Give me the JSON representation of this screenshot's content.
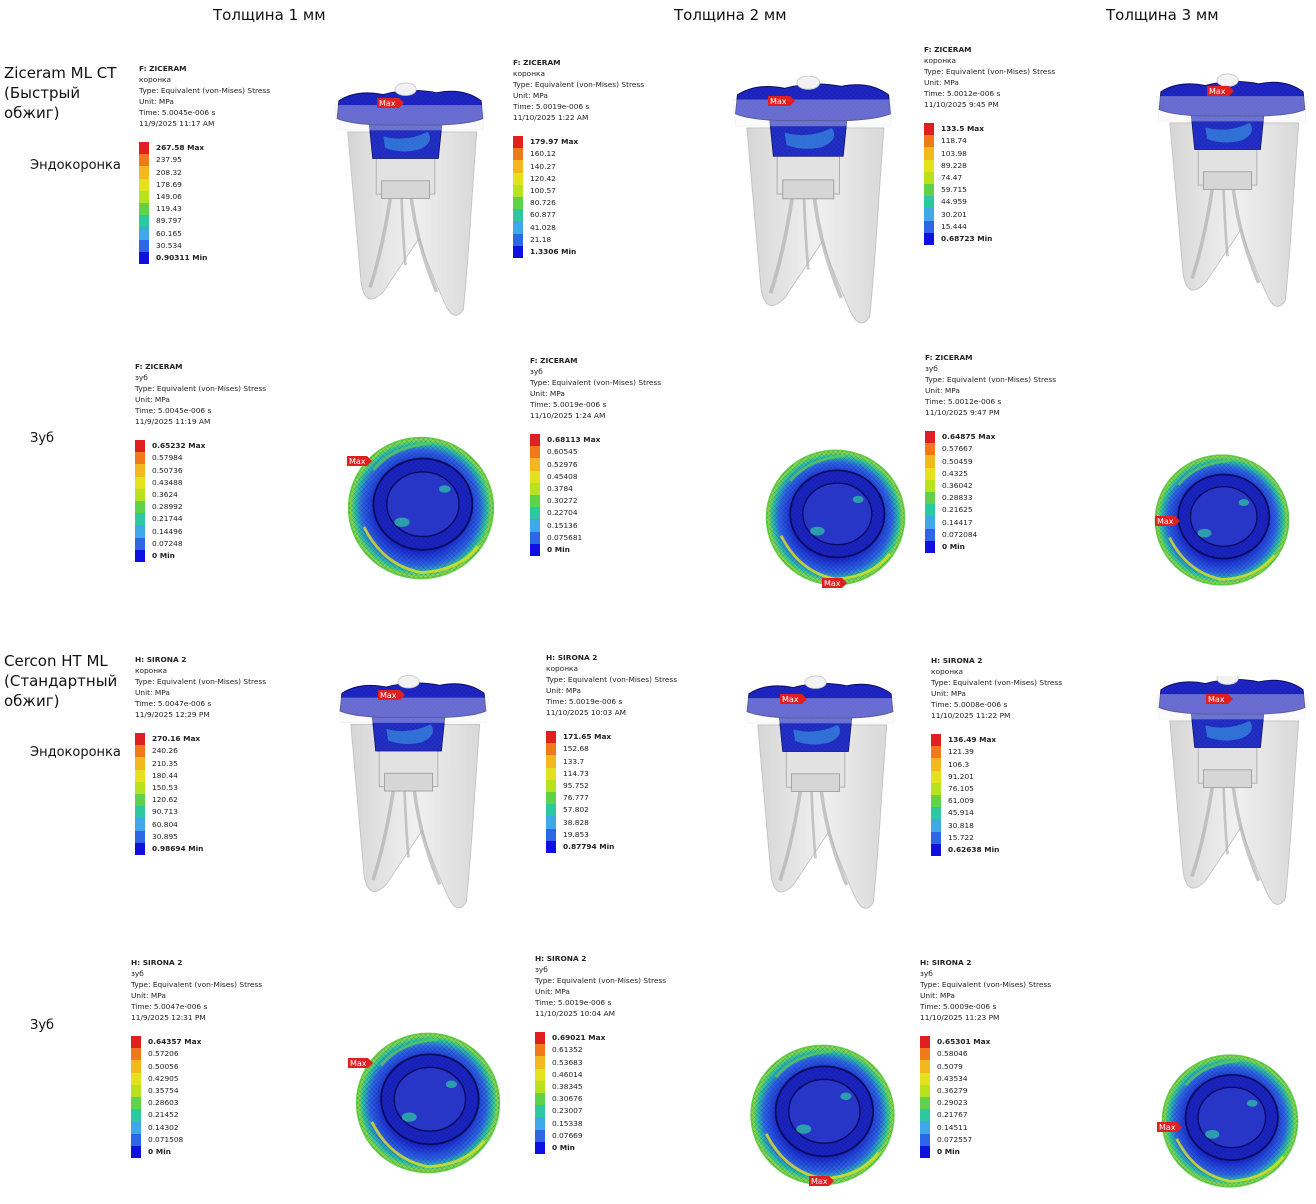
{
  "columns": [
    "Толщина 1 мм",
    "Толщина 2 мм",
    "Толщина 3 мм"
  ],
  "materials": [
    {
      "name": "Ziceram ML CT (Быстрый обжиг)"
    },
    {
      "name": "Cercon HT ML (Стандартный обжиг)"
    }
  ],
  "row_labels": {
    "crown": "Эндокоронка",
    "tooth": "Зуб"
  },
  "max_tag": "Max",
  "colors": [
    "#e02020",
    "#f07a1a",
    "#f2b81e",
    "#e4e21c",
    "#b8e21e",
    "#5fd24a",
    "#2cc9a0",
    "#3ea8e8",
    "#2d66e6",
    "#1010e0"
  ],
  "legends": [
    {
      "header": [
        "F: ZICERAM",
        "коронка",
        "Type: Equivalent (von-Mises) Stress",
        "Unit: MPa",
        "Time: 5.0045e-006 s",
        "11/9/2025 11:17 AM"
      ],
      "values": [
        "267.58 Max",
        "237.95",
        "208.32",
        "178.69",
        "149.06",
        "119.43",
        "89.797",
        "60.165",
        "30.534",
        "0.90311 Min"
      ]
    },
    {
      "header": [
        "F: ZICERAM",
        "коронка",
        "Type: Equivalent (von-Mises) Stress",
        "Unit: MPa",
        "Time: 5.0019e-006 s",
        "11/10/2025 1:22 AM"
      ],
      "values": [
        "179.97 Max",
        "160.12",
        "140.27",
        "120.42",
        "100.57",
        "80.726",
        "60.877",
        "41.028",
        "21.18",
        "1.3306 Min"
      ]
    },
    {
      "header": [
        "F: ZICERAM",
        "коронка",
        "Type: Equivalent (von-Mises) Stress",
        "Unit: MPa",
        "Time: 5.0012e-006 s",
        "11/10/2025 9:45 PM"
      ],
      "values": [
        "133.5 Max",
        "118.74",
        "103.98",
        "89.228",
        "74.47",
        "59.715",
        "44.959",
        "30.201",
        "15.444",
        "0.68723 Min"
      ]
    },
    {
      "header": [
        "F: ZICERAM",
        "зуб",
        "Type: Equivalent (von-Mises) Stress",
        "Unit: MPa",
        "Time: 5.0045e-006 s",
        "11/9/2025 11:19 AM"
      ],
      "values": [
        "0.65232 Max",
        "0.57984",
        "0.50736",
        "0.43488",
        "0.3624",
        "0.28992",
        "0.21744",
        "0.14496",
        "0.07248",
        "0 Min"
      ]
    },
    {
      "header": [
        "F: ZICERAM",
        "зуб",
        "Type: Equivalent (von-Mises) Stress",
        "Unit: MPa",
        "Time: 5.0019e-006 s",
        "11/10/2025 1:24 AM"
      ],
      "values": [
        "0.68113 Max",
        "0.60545",
        "0.52976",
        "0.45408",
        "0.3784",
        "0.30272",
        "0.22704",
        "0.15136",
        "0.075681",
        "0 Min"
      ]
    },
    {
      "header": [
        "F: ZICERAM",
        "зуб",
        "Type: Equivalent (von-Mises) Stress",
        "Unit: MPa",
        "Time: 5.0012e-006 s",
        "11/10/2025 9:47 PM"
      ],
      "values": [
        "0.64875 Max",
        "0.57667",
        "0.50459",
        "0.4325",
        "0.36042",
        "0.28833",
        "0.21625",
        "0.14417",
        "0.072084",
        "0 Min"
      ]
    },
    {
      "header": [
        "H: SIRONA 2",
        "коронка",
        "Type: Equivalent (von-Mises) Stress",
        "Unit: MPa",
        "Time: 5.0047e-006 s",
        "11/9/2025 12:29 PM"
      ],
      "values": [
        "270.16 Max",
        "240.26",
        "210.35",
        "180.44",
        "150.53",
        "120.62",
        "90.713",
        "60.804",
        "30.895",
        "0.98694 Min"
      ]
    },
    {
      "header": [
        "H: SIRONA 2",
        "коронка",
        "Type: Equivalent (von-Mises) Stress",
        "Unit: MPa",
        "Time: 5.0019e-006 s",
        "11/10/2025 10:03 AM"
      ],
      "values": [
        "171.65 Max",
        "152.68",
        "133.7",
        "114.73",
        "95.752",
        "76.777",
        "57.802",
        "38.828",
        "19.853",
        "0.87794 Min"
      ]
    },
    {
      "header": [
        "H: SIRONA 2",
        "коронка",
        "Type: Equivalent (von-Mises) Stress",
        "Unit: MPa",
        "Time: 5.0008e-006 s",
        "11/10/2025 11:22 PM"
      ],
      "values": [
        "136.49 Max",
        "121.39",
        "106.3",
        "91.201",
        "76.105",
        "61.009",
        "45.914",
        "30.818",
        "15.722",
        "0.62638 Min"
      ]
    },
    {
      "header": [
        "H: SIRONA 2",
        "зуб",
        "Type: Equivalent (von-Mises) Stress",
        "Unit: MPa",
        "Time: 5.0047e-006 s",
        "11/9/2025 12:31 PM"
      ],
      "values": [
        "0.64357 Max",
        "0.57206",
        "0.50056",
        "0.42905",
        "0.35754",
        "0.28603",
        "0.21452",
        "0.14302",
        "0.071508",
        "0 Min"
      ]
    },
    {
      "header": [
        "H: SIRONA 2",
        "зуб",
        "Type: Equivalent (von-Mises) Stress",
        "Unit: MPa",
        "Time: 5.0019e-006 s",
        "11/10/2025 10:04 AM"
      ],
      "values": [
        "0.69021 Max",
        "0.61352",
        "0.53683",
        "0.46014",
        "0.38345",
        "0.30676",
        "0.23007",
        "0.15338",
        "0.07669",
        "0 Min"
      ]
    },
    {
      "header": [
        "H: SIRONA 2",
        "зуб",
        "Type: Equivalent (von-Mises) Stress",
        "Unit: MPa",
        "Time: 5.0009e-006 s",
        "11/10/2025 11:23 PM"
      ],
      "values": [
        "0.65301 Max",
        "0.58046",
        "0.5079",
        "0.43534",
        "0.36279",
        "0.29023",
        "0.21767",
        "0.14511",
        "0.072557",
        "0 Min"
      ]
    }
  ]
}
